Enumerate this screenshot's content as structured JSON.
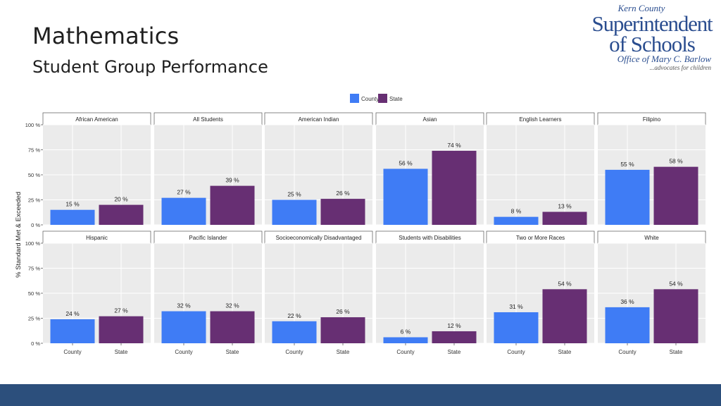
{
  "slide": {
    "title": "Mathematics",
    "subtitle": "Student Group Performance"
  },
  "logo": {
    "line1": "Kern County",
    "line2": "Superintendent",
    "line3": "of Schools",
    "line4": "Office of Mary C. Barlow",
    "line5": "...advocates for children"
  },
  "colors": {
    "county": "#3f7cf5",
    "state": "#672f73",
    "panel_bg": "#ebebeb",
    "grid": "#ffffff",
    "footer": "#2c4f7c"
  },
  "chart_data": {
    "type": "bar",
    "ylabel": "% Standard Met & Exceeded",
    "xlabel": "",
    "ylim": [
      0,
      100
    ],
    "yticks": [
      0,
      25,
      50,
      75,
      100
    ],
    "ytick_labels": [
      "0 %",
      "25 %",
      "50 %",
      "75 %",
      "100 %"
    ],
    "categories": [
      "County",
      "State"
    ],
    "legend": {
      "placement": "top-center",
      "entries": [
        "County",
        "State"
      ]
    },
    "facets": [
      {
        "name": "African American",
        "values": [
          15,
          20
        ],
        "labels": [
          "15 %",
          "20 %"
        ]
      },
      {
        "name": "All Students",
        "values": [
          27,
          39
        ],
        "labels": [
          "27 %",
          "39 %"
        ]
      },
      {
        "name": "American Indian",
        "values": [
          25,
          26
        ],
        "labels": [
          "25 %",
          "26 %"
        ]
      },
      {
        "name": "Asian",
        "values": [
          56,
          74
        ],
        "labels": [
          "56 %",
          "74 %"
        ]
      },
      {
        "name": "English Learners",
        "values": [
          8,
          13
        ],
        "labels": [
          "8 %",
          "13 %"
        ]
      },
      {
        "name": "Filipino",
        "values": [
          55,
          58
        ],
        "labels": [
          "55 %",
          "58 %"
        ]
      },
      {
        "name": "Hispanic",
        "values": [
          24,
          27
        ],
        "labels": [
          "24 %",
          "27 %"
        ]
      },
      {
        "name": "Pacific Islander",
        "values": [
          32,
          32
        ],
        "labels": [
          "32 %",
          "32 %"
        ]
      },
      {
        "name": "Socioeconomically Disadvantaged",
        "values": [
          22,
          26
        ],
        "labels": [
          "22 %",
          "26 %"
        ]
      },
      {
        "name": "Students with Disabilities",
        "values": [
          6,
          12
        ],
        "labels": [
          "6 %",
          "12 %"
        ]
      },
      {
        "name": "Two or More Races",
        "values": [
          31,
          54
        ],
        "labels": [
          "31 %",
          "54 %"
        ]
      },
      {
        "name": "White",
        "values": [
          36,
          54
        ],
        "labels": [
          "36 %",
          "54 %"
        ]
      }
    ]
  }
}
